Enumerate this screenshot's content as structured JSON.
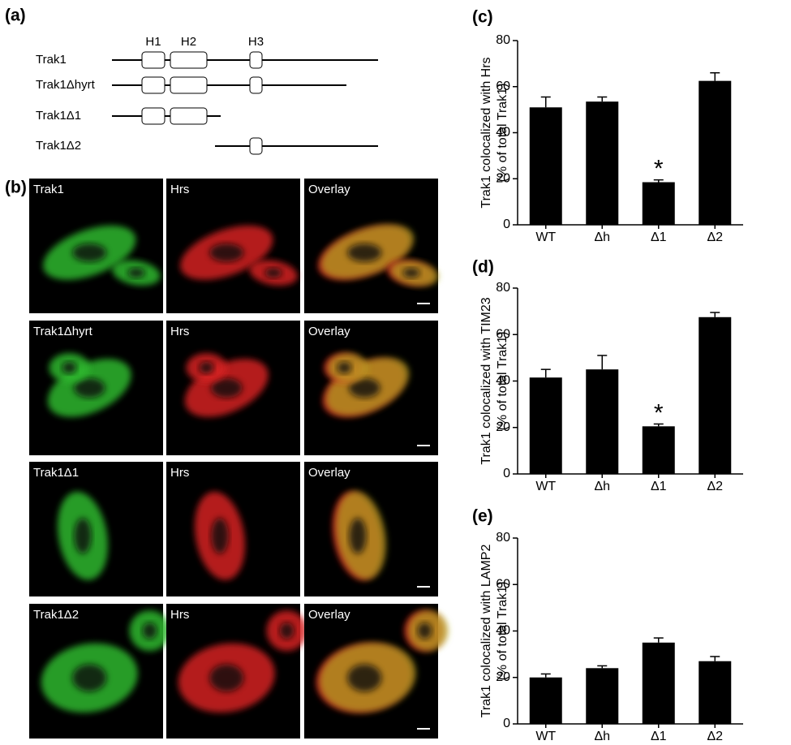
{
  "panels": [
    "(a)",
    "(b)",
    "(c)",
    "(d)",
    "(e)"
  ],
  "diagram": {
    "constructs": [
      "Trak1",
      "Trak1Δhyrt",
      "Trak1Δ1",
      "Trak1Δ2"
    ],
    "domains": [
      "H1",
      "H2",
      "H3"
    ]
  },
  "micrographs": {
    "rows": [
      [
        "Trak1",
        "Hrs",
        "Overlay"
      ],
      [
        "Trak1Δhyrt",
        "Hrs",
        "Overlay"
      ],
      [
        "Trak1Δ1",
        "Hrs",
        "Overlay"
      ],
      [
        "Trak1Δ2",
        "Hrs",
        "Overlay"
      ]
    ]
  },
  "chart_data": [
    {
      "type": "bar",
      "ylabel": [
        "Trak1 colocalized with Hrs",
        "(% of total Trak1)"
      ],
      "categories": [
        "WT",
        "Δh",
        "Δ1",
        "Δ2"
      ],
      "values": [
        51,
        53.5,
        18.5,
        62.5
      ],
      "errors": [
        4.5,
        2,
        1,
        3.5
      ],
      "color": "#000000",
      "ylim": [
        0,
        80
      ],
      "yticks": [
        0,
        20,
        40,
        60,
        80
      ],
      "annotations": [
        {
          "text": "*",
          "category": "Δ1"
        }
      ]
    },
    {
      "type": "bar",
      "ylabel": [
        "Trak1 colocalized with TIM23",
        "(% of total Trak1)"
      ],
      "categories": [
        "WT",
        "Δh",
        "Δ1",
        "Δ2"
      ],
      "values": [
        41.5,
        45,
        20.5,
        67.5
      ],
      "errors": [
        3.5,
        6,
        1,
        2
      ],
      "color": "#000000",
      "ylim": [
        0,
        80
      ],
      "yticks": [
        0,
        20,
        40,
        60,
        80
      ],
      "annotations": [
        {
          "text": "*",
          "category": "Δ1"
        }
      ]
    },
    {
      "type": "bar",
      "ylabel": [
        "Trak1 colocalized with LAMP2",
        "(% of total Trak1)"
      ],
      "categories": [
        "WT",
        "Δh",
        "Δ1",
        "Δ2"
      ],
      "values": [
        20,
        24,
        35,
        27
      ],
      "errors": [
        1.5,
        1,
        2,
        2
      ],
      "color": "#000000",
      "ylim": [
        0,
        80
      ],
      "yticks": [
        0,
        20,
        40,
        60,
        80
      ]
    }
  ]
}
